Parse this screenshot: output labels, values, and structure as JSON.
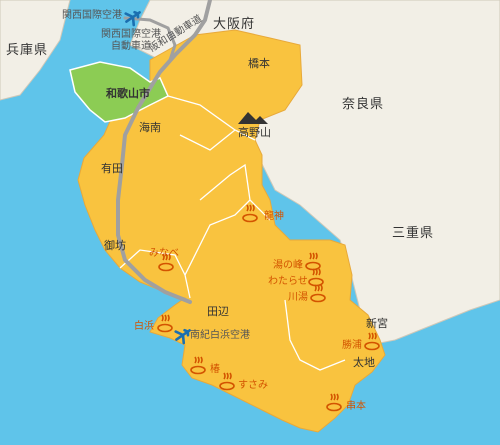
{
  "prefectures": {
    "hyogo": "兵庫県",
    "osaka": "大阪府",
    "nara": "奈良県",
    "mie": "三重県"
  },
  "airports": {
    "kansai": "関西国際空港",
    "nanki": "南紀白浜空港"
  },
  "roads": {
    "kansai_connector": "関西国際空港\n自動車道",
    "hanwa": "阪和自動車道"
  },
  "regions": {
    "wakayama_city": "和歌山市",
    "hashimoto": "橋本",
    "kainan": "海南",
    "koyasan": "高野山",
    "arida": "有田",
    "gobo": "御坊",
    "tanabe": "田辺",
    "shingu": "新宮",
    "taiji": "太地"
  },
  "onsen": {
    "ryujin": "龍神",
    "minabe": "みなべ",
    "yunomine": "湯の峰",
    "watarase": "わたらせ",
    "kawayu": "川湯",
    "shirahama": "白浜",
    "katsuura": "勝浦",
    "tsubaki": "椿",
    "susami": "すさみ",
    "kushimoto": "串本"
  },
  "colors": {
    "sea": "#5fc4ea",
    "land": "#f2efe6",
    "wakayama": "#f9c33f",
    "wakayama_city": "#8ccc54",
    "road": "#a0a0a0",
    "onsen": "#d35400",
    "airplane": "#1a6fb0"
  }
}
